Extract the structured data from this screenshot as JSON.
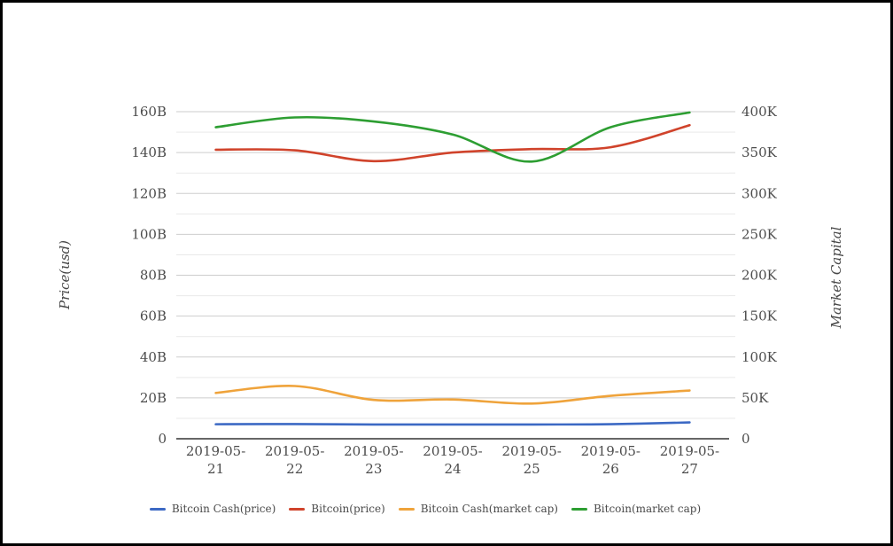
{
  "chart_data": {
    "type": "line",
    "smooth": true,
    "grid": true,
    "legend_position": "bottom",
    "categories": [
      "2019-05-21",
      "2019-05-22",
      "2019-05-23",
      "2019-05-24",
      "2019-05-25",
      "2019-05-26",
      "2019-05-27"
    ],
    "series": [
      {
        "name": "Bitcoin Cash(price)",
        "axis": "left",
        "unit": "B",
        "color": "#3c69c4",
        "values": [
          7.1,
          7.2,
          7.0,
          7.0,
          7.0,
          7.1,
          8.0
        ]
      },
      {
        "name": "Bitcoin(price)",
        "axis": "left",
        "unit": "B",
        "color": "#d0432b",
        "values": [
          141.4,
          141.1,
          135.8,
          140.0,
          141.7,
          142.6,
          153.4
        ]
      },
      {
        "name": "Bitcoin Cash(market cap)",
        "axis": "right",
        "unit": "K",
        "color": "#efa33b",
        "values": [
          56,
          64.5,
          47.5,
          48,
          43,
          52.5,
          59
        ]
      },
      {
        "name": "Bitcoin(market cap)",
        "axis": "right",
        "unit": "K",
        "color": "#2d9e32",
        "values": [
          381,
          393,
          388,
          372,
          339,
          381,
          399
        ]
      }
    ],
    "left_axis": {
      "title": "Price(usd)",
      "min": 0,
      "max": 160,
      "major_step": 20,
      "minor_step": 10,
      "tick_labels": [
        "0",
        "20B",
        "40B",
        "60B",
        "80B",
        "100B",
        "120B",
        "140B",
        "160B"
      ]
    },
    "right_axis": {
      "title": "Market Capital",
      "min": 0,
      "max": 400,
      "major_step": 50,
      "minor_step": 25,
      "tick_labels": [
        "0",
        "50K",
        "100K",
        "150K",
        "200K",
        "250K",
        "300K",
        "350K",
        "400K"
      ]
    }
  },
  "colors": {
    "major_gridline": "#cdcdcd",
    "minor_gridline": "#e9e9e9",
    "axis_line": "#333333",
    "tick_label": "#4c4c4c",
    "legend_text": "#4a4a4a",
    "background": "#ffffff",
    "frame_border": "#000000"
  }
}
